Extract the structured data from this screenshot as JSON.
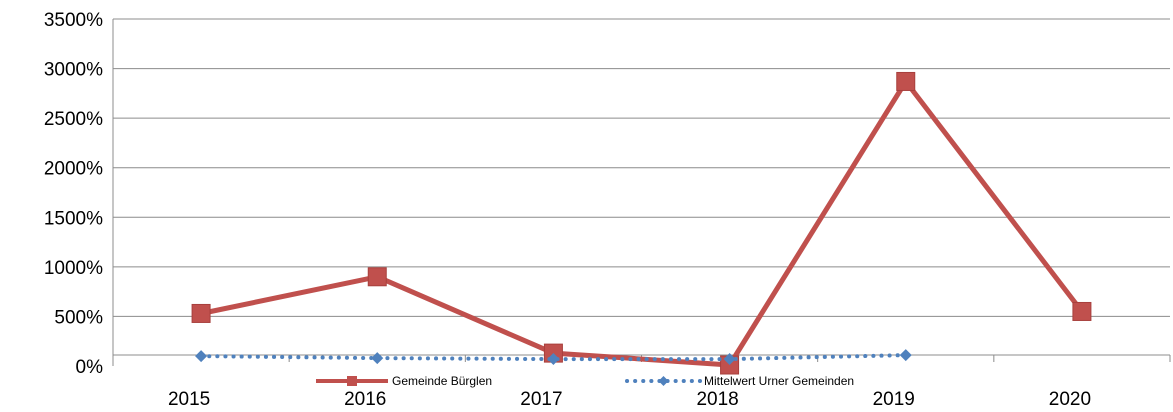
{
  "chart_data": {
    "type": "line",
    "categories": [
      "2015",
      "2016",
      "2017",
      "2018",
      "2019",
      "2020"
    ],
    "series": [
      {
        "name": "Gemeinde Bürglen",
        "values": [
          530,
          900,
          130,
          10,
          2870,
          550
        ],
        "color": "#C0504D",
        "style": "solid",
        "marker": "square"
      },
      {
        "name": "Mittelwert Urner Gemeinden",
        "values": [
          100,
          80,
          70,
          70,
          110,
          null
        ],
        "color": "#4F81BD",
        "style": "dotted",
        "marker": "diamond"
      }
    ],
    "y_ticks": [
      "0%",
      "500%",
      "1000%",
      "1500%",
      "2000%",
      "2500%",
      "3000%",
      "3500%"
    ],
    "ylim": [
      0,
      3500
    ],
    "grid": true,
    "legend": "bottom",
    "title": "",
    "xlabel": "",
    "ylabel": ""
  }
}
